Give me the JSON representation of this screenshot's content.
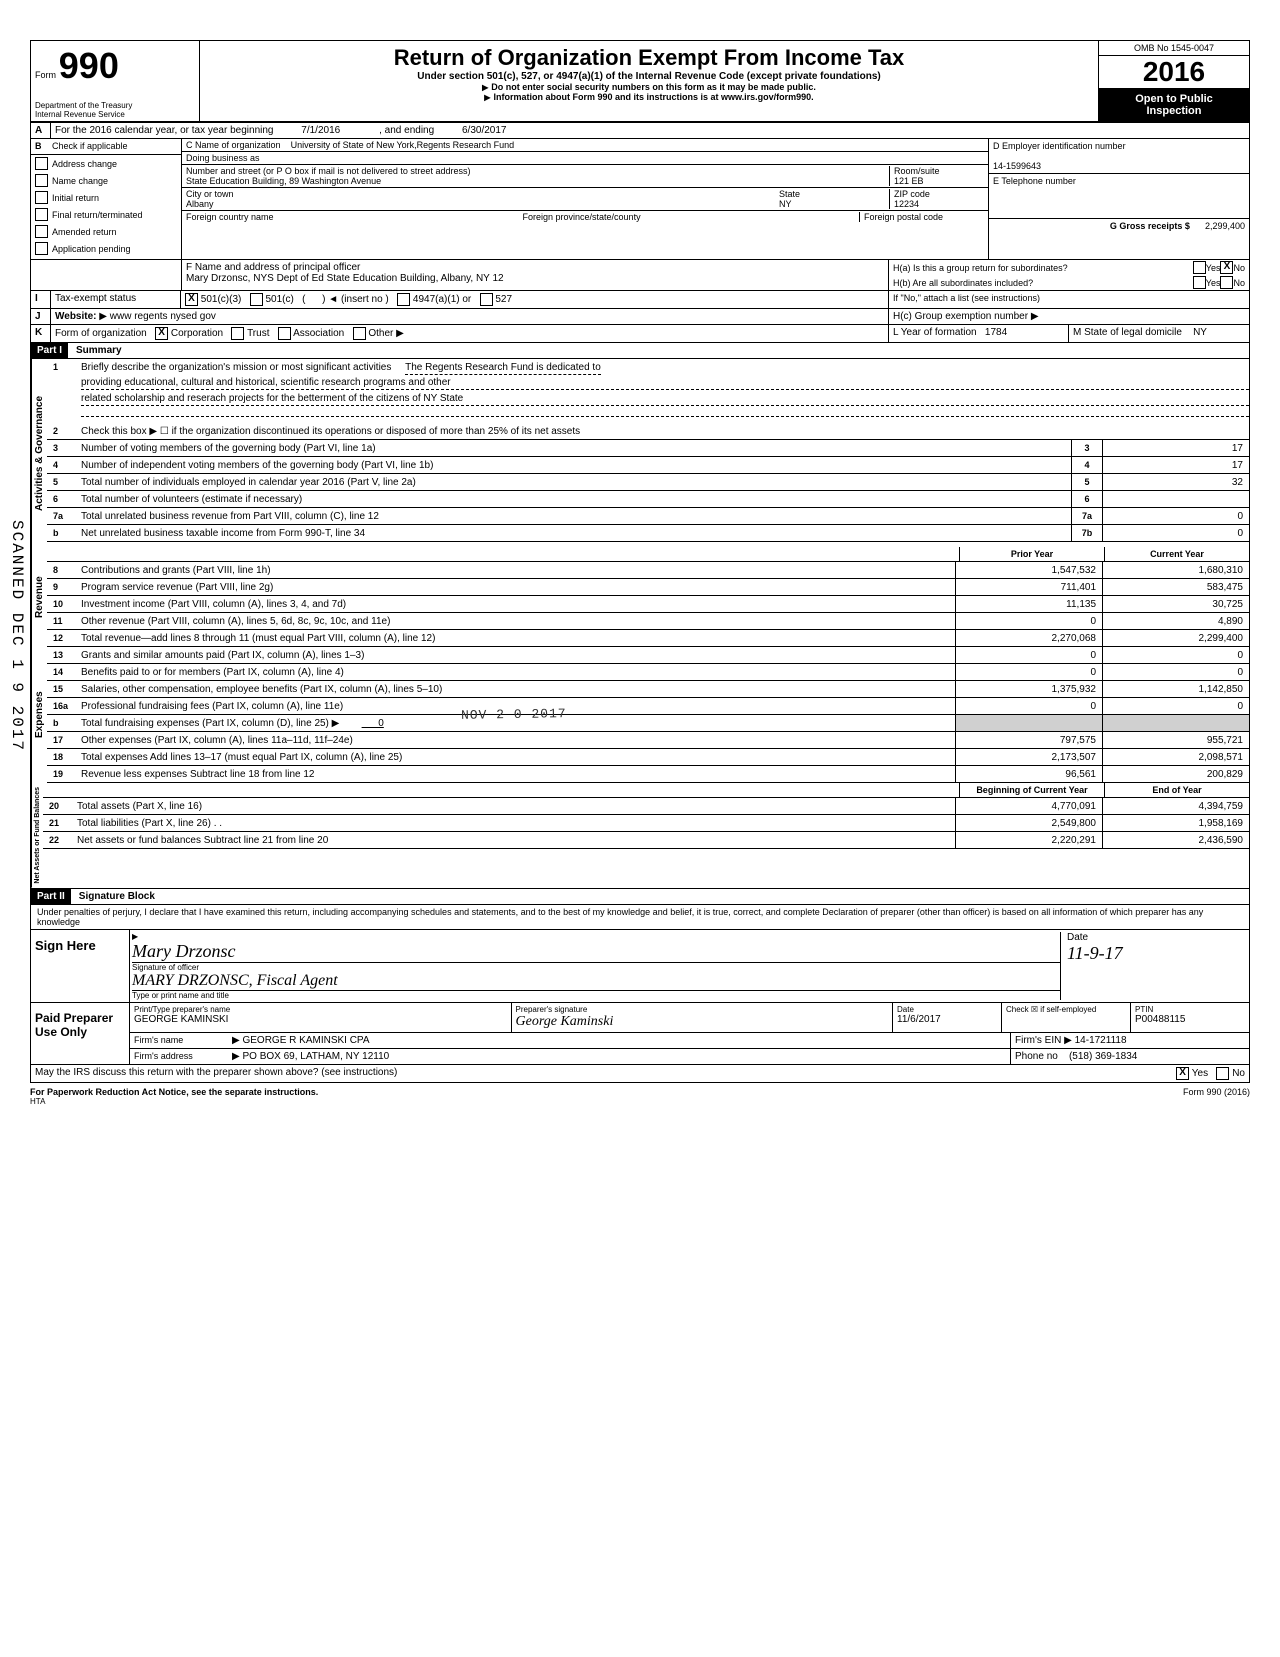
{
  "header": {
    "form_label": "Form",
    "form_number": "990",
    "dept": "Department of the Treasury",
    "irs": "Internal Revenue Service",
    "title": "Return of Organization Exempt From Income Tax",
    "subtitle": "Under section 501(c), 527, or 4947(a)(1) of the Internal Revenue Code (except private foundations)",
    "warn": "Do not enter social security numbers on this form as it may be made public.",
    "info": "Information about Form 990 and its instructions is at www.irs.gov/form990.",
    "omb": "OMB No 1545-0047",
    "year": "2016",
    "open1": "Open to Public",
    "open2": "Inspection"
  },
  "sectionA": {
    "line": "For the 2016 calendar year, or tax year beginning",
    "begin": "7/1/2016",
    "ending_label": ", and ending",
    "ending": "6/30/2017"
  },
  "sectionB": {
    "label": "Check if applicable",
    "items": [
      "Address change",
      "Name change",
      "Initial return",
      "Final return/terminated",
      "Amended return",
      "Application pending"
    ]
  },
  "sectionC": {
    "name_label": "C  Name of organization",
    "name": "University of State of New York,Regents Research Fund",
    "dba_label": "Doing business as",
    "addr_label": "Number and street (or P O  box if mail is not delivered to street address)",
    "addr": "State Education Building, 89 Washington Avenue",
    "room_label": "Room/suite",
    "room": "121 EB",
    "city_label": "City or town",
    "city": "Albany",
    "state_label": "State",
    "state": "NY",
    "zip_label": "ZIP code",
    "zip": "12234",
    "foreign_country": "Foreign country name",
    "foreign_prov": "Foreign province/state/county",
    "foreign_postal": "Foreign postal code"
  },
  "sectionD": {
    "label": "D   Employer identification number",
    "value": "14-1599643"
  },
  "sectionE": {
    "label": "E   Telephone number"
  },
  "sectionF": {
    "label": "F  Name and address of principal officer",
    "value": "Mary Drzonsc,  NYS Dept of Ed  State Education Building, Albany, NY  12"
  },
  "sectionG": {
    "label": "G   Gross receipts $",
    "value": "2,299,400"
  },
  "sectionH": {
    "ha": "H(a) Is this a group return for subordinates?",
    "hb": "H(b) Are all subordinates included?",
    "hb_note": "If \"No,\" attach a list  (see instructions)",
    "hc": "H(c) Group exemption number"
  },
  "sectionI": {
    "label": "Tax-exempt status",
    "opt1": "501(c)(3)",
    "opt2": "501(c)",
    "insert": "(insert no )",
    "opt3": "4947(a)(1) or",
    "opt4": "527"
  },
  "sectionJ": {
    "label": "Website:",
    "value": "www regents nysed gov"
  },
  "sectionK": {
    "label": "Form of organization",
    "opts": [
      "Corporation",
      "Trust",
      "Association",
      "Other"
    ]
  },
  "sectionL": {
    "label": "L Year of formation",
    "value": "1784"
  },
  "sectionM": {
    "label": "M State of legal domicile",
    "value": "NY"
  },
  "part1": {
    "header": "Part I",
    "title": "Summary",
    "line1_label": "Briefly describe the organization's mission or most significant activities",
    "line1_a": "The Regents Research Fund is dedicated to",
    "line1_b": "providing educational, cultural and historical, scientific research programs and other",
    "line1_c": "related scholarship and reserach projects for the betterment of the citizens of NY State",
    "line2": "Check this box ▶ ☐  if the organization discontinued its operations or disposed of more than 25% of its net assets",
    "lines_single": [
      {
        "n": "3",
        "t": "Number of voting members of the governing body (Part VI, line 1a)",
        "b": "3",
        "v": "17"
      },
      {
        "n": "4",
        "t": "Number of independent voting members of the governing body (Part VI, line 1b)",
        "b": "4",
        "v": "17"
      },
      {
        "n": "5",
        "t": "Total number of individuals employed in calendar year 2016 (Part V, line 2a)",
        "b": "5",
        "v": "32"
      },
      {
        "n": "6",
        "t": "Total number of volunteers (estimate if necessary)",
        "b": "6",
        "v": ""
      },
      {
        "n": "7a",
        "t": "Total unrelated business revenue from Part VIII, column (C), line 12",
        "b": "7a",
        "v": "0"
      },
      {
        "n": "b",
        "t": "Net unrelated business taxable income from Form 990-T, line 34",
        "b": "7b",
        "v": "0"
      }
    ],
    "col1": "Prior Year",
    "col2": "Current Year",
    "revenue": [
      {
        "n": "8",
        "t": "Contributions and grants (Part VIII, line 1h)",
        "v1": "1,547,532",
        "v2": "1,680,310"
      },
      {
        "n": "9",
        "t": "Program service revenue (Part VIII, line 2g)",
        "v1": "711,401",
        "v2": "583,475"
      },
      {
        "n": "10",
        "t": "Investment income (Part VIII, column (A), lines 3, 4, and 7d)",
        "v1": "11,135",
        "v2": "30,725"
      },
      {
        "n": "11",
        "t": "Other revenue (Part VIII, column (A), lines 5, 6d, 8c, 9c, 10c, and 11e)",
        "v1": "0",
        "v2": "4,890"
      },
      {
        "n": "12",
        "t": "Total revenue—add lines 8 through 11 (must equal Part VIII, column (A), line 12)",
        "v1": "2,270,068",
        "v2": "2,299,400"
      }
    ],
    "expenses": [
      {
        "n": "13",
        "t": "Grants and similar amounts paid (Part IX, column (A), lines 1–3)",
        "v1": "0",
        "v2": "0"
      },
      {
        "n": "14",
        "t": "Benefits paid to or for members (Part IX, column (A), line 4)",
        "v1": "0",
        "v2": "0"
      },
      {
        "n": "15",
        "t": "Salaries, other compensation, employee benefits (Part IX, column (A), lines 5–10)",
        "v1": "1,375,932",
        "v2": "1,142,850"
      },
      {
        "n": "16a",
        "t": "Professional fundraising fees (Part IX, column (A), line 11e)",
        "v1": "0",
        "v2": "0"
      },
      {
        "n": "b",
        "t": "Total fundraising expenses (Part IX, column (D), line 25)  ▶",
        "v1": "",
        "v2": "",
        "shaded": true,
        "extra": "0"
      },
      {
        "n": "17",
        "t": "Other expenses (Part IX, column (A), lines 11a–11d, 11f–24e)",
        "v1": "797,575",
        "v2": "955,721"
      },
      {
        "n": "18",
        "t": "Total expenses  Add lines 13–17 (must equal Part IX, column (A), line 25)",
        "v1": "2,173,507",
        "v2": "2,098,571"
      },
      {
        "n": "19",
        "t": "Revenue less expenses  Subtract line 18 from line 12",
        "v1": "96,561",
        "v2": "200,829"
      }
    ],
    "col3": "Beginning of Current Year",
    "col4": "End of Year",
    "net": [
      {
        "n": "20",
        "t": "Total assets (Part X, line 16)",
        "v1": "4,770,091",
        "v2": "4,394,759"
      },
      {
        "n": "21",
        "t": "Total liabilities (Part X, line 26) . .",
        "v1": "2,549,800",
        "v2": "1,958,169"
      },
      {
        "n": "22",
        "t": "Net assets or fund balances  Subtract line 21 from line 20",
        "v1": "2,220,291",
        "v2": "2,436,590"
      }
    ],
    "vlabels": [
      "Activities & Governance",
      "Revenue",
      "Expenses",
      "Net Assets or\nFund Balances"
    ]
  },
  "part2": {
    "header": "Part II",
    "title": "Signature Block",
    "penalty": "Under penalties of perjury, I declare that I have examined this return, including accompanying schedules and statements, and to the best of my knowledge and belief, it is true, correct, and complete  Declaration of preparer (other than officer) is based on all information of which preparer has any knowledge"
  },
  "sign": {
    "label": "Sign Here",
    "sig_officer": "Signature of officer",
    "sig_name_hand": "Mary Drzonsc",
    "typed_name": "MARY  DRZONSC,  Fiscal Agent",
    "type_label": "Type or print name and title",
    "date_label": "Date",
    "date_hand": "11-9-17"
  },
  "preparer": {
    "label": "Paid Preparer Use Only",
    "name_label": "Print/Type preparer's name",
    "name": "GEORGE KAMINSKI",
    "sig_label": "Preparer's signature",
    "date_label": "Date",
    "date": "11/6/2017",
    "check_label": "Check ☒ if self-employed",
    "ptin_label": "PTIN",
    "ptin": "P00488115",
    "firm_label": "Firm's name",
    "firm": "GEORGE R  KAMINSKI CPA",
    "ein_label": "Firm's EIN",
    "ein": "14-1721118",
    "addr_label": "Firm's address",
    "addr": "PO BOX 69, LATHAM, NY 12110",
    "phone_label": "Phone no",
    "phone": "(518) 369-1834"
  },
  "discuss": "May the IRS discuss this return with the preparer shown above? (see instructions)",
  "footer": {
    "left": "For Paperwork Reduction Act Notice, see the separate instructions.",
    "hta": "HTA",
    "right": "Form 990 (2016)"
  },
  "stamps": {
    "scanned": "SCANNED DEC 1 9 2017",
    "received": "NOV 2 0 2017"
  },
  "yn": {
    "yes": "Yes",
    "no": "No"
  }
}
